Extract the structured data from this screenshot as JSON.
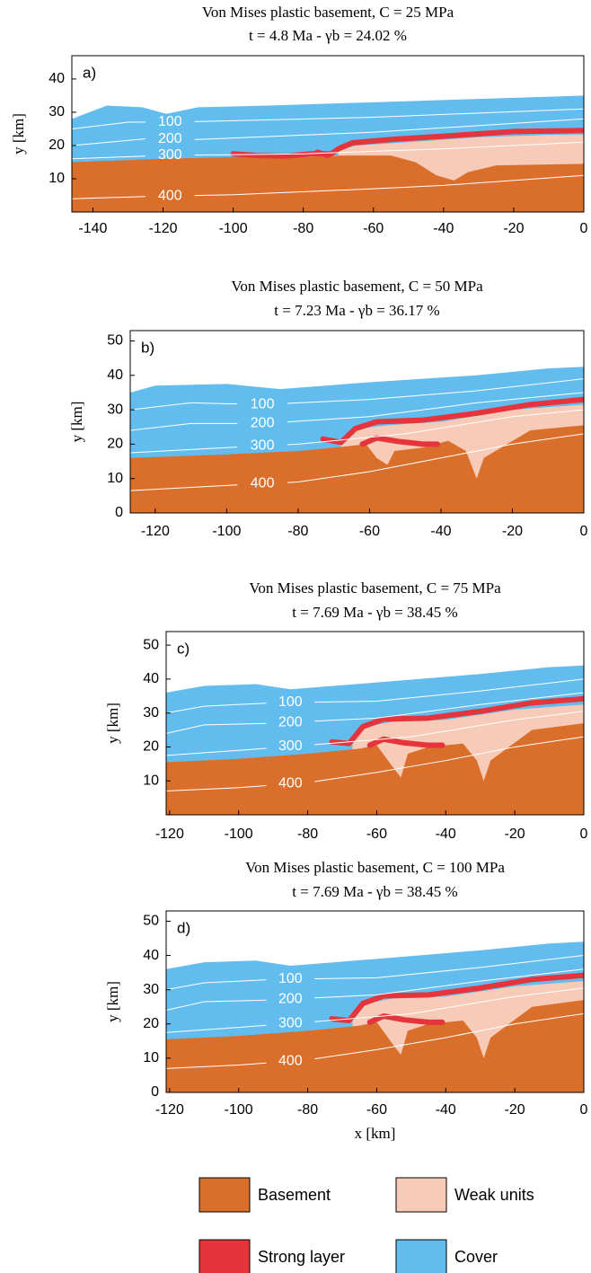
{
  "chart_data": [
    {
      "type": "cross-section",
      "title": "Von Mises plastic basement, C = 25 MPa",
      "subtitle": "t = 4.8 Ma - γb = 24.02 %",
      "panel_label": "a)",
      "ylabel": "y [km]",
      "xlim": [
        -146,
        0
      ],
      "xticks": [
        -140,
        -120,
        -100,
        -80,
        -60,
        -40,
        -20,
        0
      ],
      "ylim": [
        0,
        47
      ],
      "yticks": [
        10,
        20,
        30,
        40
      ],
      "contour_labels": [
        100,
        200,
        300,
        400
      ]
    },
    {
      "type": "cross-section",
      "title": "Von Mises plastic basement, C = 50 MPa",
      "subtitle": "t = 7.23 Ma - γb = 36.17 %",
      "panel_label": "b)",
      "ylabel": "y [km]",
      "xlim": [
        -127,
        0
      ],
      "xticks": [
        -120,
        -100,
        -80,
        -60,
        -40,
        -20,
        0
      ],
      "ylim": [
        0,
        53
      ],
      "yticks": [
        0,
        10,
        20,
        30,
        40,
        50
      ],
      "contour_labels": [
        100,
        200,
        300,
        400
      ]
    },
    {
      "type": "cross-section",
      "title": "Von Mises plastic basement, C = 75 MPa",
      "subtitle": "t = 7.69 Ma - γb = 38.45 %",
      "panel_label": "c)",
      "ylabel": "y [km]",
      "xlim": [
        -121,
        0
      ],
      "xticks": [
        -120,
        -100,
        -80,
        -60,
        -40,
        -20,
        0
      ],
      "ylim": [
        0,
        54
      ],
      "yticks": [
        10,
        20,
        30,
        40,
        50
      ],
      "contour_labels": [
        100,
        200,
        300,
        400
      ]
    },
    {
      "type": "cross-section",
      "title": "Von Mises plastic basement, C = 100 MPa",
      "subtitle": "t = 7.69 Ma - γb = 38.45 %",
      "panel_label": "d)",
      "ylabel": "y [km]",
      "xlabel": "x [km]",
      "xlim": [
        -121,
        0
      ],
      "xticks": [
        -120,
        -100,
        -80,
        -60,
        -40,
        -20,
        0
      ],
      "ylim": [
        0,
        53
      ],
      "yticks": [
        0,
        10,
        20,
        30,
        40,
        50
      ],
      "contour_labels": [
        100,
        200,
        300,
        400
      ],
      "legend": [
        {
          "name": "Basement",
          "color": "#da6f2b"
        },
        {
          "name": "Weak units",
          "color": "#f7cbb8"
        },
        {
          "name": "Strong layer",
          "color": "#e5343b"
        },
        {
          "name": "Cover",
          "color": "#62bdee"
        }
      ]
    }
  ]
}
